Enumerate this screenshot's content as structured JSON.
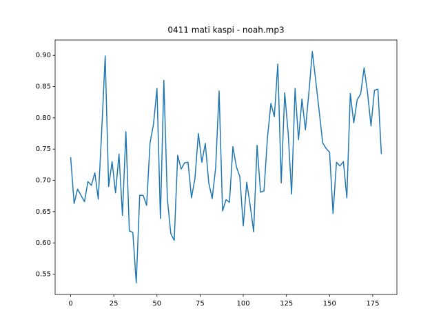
{
  "chart_data": {
    "type": "line",
    "title": "0411 mati kaspi - noah.mp3",
    "x": [
      0,
      2,
      4,
      6,
      8,
      10,
      12,
      14,
      16,
      18,
      20,
      22,
      24,
      26,
      28,
      30,
      32,
      34,
      36,
      38,
      40,
      42,
      44,
      46,
      48,
      50,
      52,
      54,
      56,
      58,
      60,
      62,
      64,
      66,
      68,
      70,
      72,
      74,
      76,
      78,
      80,
      82,
      84,
      86,
      88,
      90,
      92,
      94,
      96,
      98,
      100,
      102,
      104,
      106,
      108,
      110,
      112,
      114,
      116,
      118,
      120,
      122,
      124,
      126,
      128,
      130,
      132,
      134,
      136,
      138,
      140,
      142,
      144,
      146,
      148,
      150,
      152,
      154,
      156,
      158,
      160,
      162,
      164,
      166,
      168,
      170,
      172,
      174,
      176,
      178,
      180
    ],
    "series": [
      {
        "name": "noah.mp3",
        "color": "#1f77b4",
        "values": [
          0.737,
          0.663,
          0.686,
          0.676,
          0.666,
          0.698,
          0.692,
          0.712,
          0.67,
          0.78,
          0.899,
          0.69,
          0.73,
          0.68,
          0.742,
          0.644,
          0.778,
          0.619,
          0.617,
          0.536,
          0.676,
          0.676,
          0.66,
          0.76,
          0.79,
          0.847,
          0.639,
          0.86,
          0.671,
          0.615,
          0.604,
          0.74,
          0.718,
          0.728,
          0.729,
          0.672,
          0.703,
          0.775,
          0.729,
          0.759,
          0.696,
          0.671,
          0.72,
          0.843,
          0.651,
          0.669,
          0.665,
          0.754,
          0.722,
          0.706,
          0.627,
          0.697,
          0.66,
          0.618,
          0.756,
          0.681,
          0.683,
          0.768,
          0.823,
          0.802,
          0.886,
          0.696,
          0.84,
          0.776,
          0.678,
          0.847,
          0.765,
          0.83,
          0.781,
          0.84,
          0.906,
          0.859,
          0.81,
          0.76,
          0.751,
          0.745,
          0.647,
          0.729,
          0.723,
          0.73,
          0.672,
          0.839,
          0.792,
          0.829,
          0.838,
          0.88,
          0.84,
          0.787,
          0.844,
          0.846,
          0.742
        ]
      }
    ],
    "xlim": [
      -9,
      189
    ],
    "ylim": [
      0.5175,
      0.9245
    ],
    "xticks": [
      0,
      25,
      50,
      75,
      100,
      125,
      150,
      175
    ],
    "yticks": [
      0.55,
      {
        "value": 0.6,
        "label": "0.60"
      },
      0.65,
      {
        "value": 0.7,
        "label": "0.70"
      },
      0.75,
      {
        "value": 0.8,
        "label": "0.80"
      },
      0.85,
      {
        "value": 0.9,
        "label": "0.90"
      }
    ],
    "grid": false
  }
}
